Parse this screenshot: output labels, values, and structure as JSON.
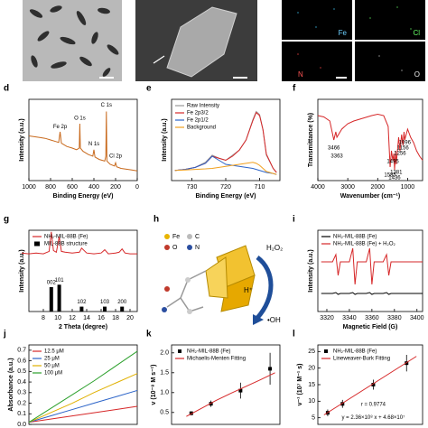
{
  "images": {
    "eds_labels": [
      "Fe",
      "Cl",
      "N",
      "O"
    ]
  },
  "diagram": {
    "panel": "h",
    "legend": [
      "Fe",
      "C",
      "O",
      "N"
    ],
    "labels": [
      "H₂O₂",
      "H⁺",
      "•OH"
    ]
  },
  "chart_data": [
    {
      "type": "line",
      "panel": "d",
      "xlabel": "Binding Energy (eV)",
      "ylabel": "Intensity (a.u.)",
      "xlim": [
        1000,
        0
      ],
      "ylim": [
        0,
        100
      ],
      "xticks": [
        1000,
        800,
        600,
        400,
        200,
        0
      ],
      "x": [
        1000,
        950,
        900,
        850,
        800,
        750,
        725,
        712,
        700,
        650,
        600,
        560,
        535,
        530,
        525,
        500,
        450,
        410,
        400,
        390,
        350,
        300,
        290,
        285,
        280,
        250,
        210,
        200,
        190,
        150,
        100,
        50,
        0
      ],
      "series": [
        {
          "color": "#c8691c",
          "values": [
            55,
            54,
            53,
            52,
            50,
            48,
            47,
            60,
            46,
            42,
            40,
            38,
            40,
            70,
            40,
            36,
            32,
            30,
            38,
            29,
            26,
            24,
            30,
            85,
            24,
            20,
            18,
            22,
            17,
            15,
            14,
            13,
            12
          ]
        }
      ],
      "annotations": [
        {
          "text": "Fe 2p",
          "x": 712,
          "y": 66
        },
        {
          "text": "O 1s",
          "x": 530,
          "y": 77
        },
        {
          "text": "N 1s",
          "x": 400,
          "y": 45
        },
        {
          "text": "C 1s",
          "x": 285,
          "y": 93
        },
        {
          "text": "Cl 2p",
          "x": 200,
          "y": 30
        }
      ]
    },
    {
      "type": "line",
      "panel": "e",
      "xlabel": "Binding Energy (eV)",
      "ylabel": "Intensity (a.u.)",
      "xlim": [
        736,
        704
      ],
      "ylim": [
        20,
        100
      ],
      "xticks": [
        730,
        720,
        710
      ],
      "legend": "upper-left",
      "x": [
        735,
        732,
        729,
        726,
        724,
        722,
        720,
        718,
        716,
        714,
        712,
        711,
        710,
        709,
        708,
        706,
        705
      ],
      "series": [
        {
          "name": "Raw Intensity",
          "color": "#9a9a9a",
          "values": [
            30,
            31,
            33,
            38,
            45,
            42,
            40,
            45,
            50,
            60,
            80,
            88,
            85,
            70,
            45,
            32,
            28
          ]
        },
        {
          "name": "Fe 2p3/2",
          "color": "#d62728",
          "values": [
            30,
            31,
            33,
            37,
            44,
            42,
            40,
            44,
            50,
            60,
            79,
            87,
            84,
            70,
            46,
            32,
            28
          ]
        },
        {
          "name": "Fe 2p1/2",
          "color": "#2b63c8",
          "values": [
            30,
            31,
            33,
            37,
            44,
            40,
            36,
            35,
            34,
            33,
            32,
            31,
            30,
            29,
            28,
            27,
            26
          ]
        },
        {
          "name": "Background",
          "color": "#f0a020",
          "values": [
            30,
            30.5,
            31,
            31.5,
            32,
            33,
            34,
            35,
            36,
            37,
            38,
            37,
            35,
            32,
            29,
            27,
            26
          ]
        }
      ]
    },
    {
      "type": "line",
      "panel": "f",
      "xlabel": "Wavenumber (cm⁻¹)",
      "ylabel": "Transmittance (%)",
      "xlim": [
        4000,
        500
      ],
      "ylim": [
        40,
        100
      ],
      "xticks": [
        4000,
        3000,
        2000,
        1000
      ],
      "x": [
        4000,
        3800,
        3600,
        3466,
        3400,
        3363,
        3200,
        3000,
        2800,
        2500,
        2200,
        2000,
        1800,
        1650,
        1585,
        1540,
        1495,
        1460,
        1436,
        1400,
        1381,
        1300,
        1256,
        1200,
        1156,
        1120,
        1096,
        1000,
        900,
        800,
        700,
        600,
        500
      ],
      "series": [
        {
          "color": "#d62728",
          "values": [
            88,
            87,
            84,
            70,
            76,
            72,
            78,
            82,
            84,
            86,
            88,
            89,
            88,
            80,
            50,
            62,
            55,
            60,
            48,
            62,
            52,
            72,
            62,
            74,
            66,
            76,
            70,
            78,
            72,
            68,
            62,
            58,
            55
          ]
        }
      ],
      "annotations": [
        {
          "x": 3466,
          "y": 64
        },
        {
          "x": 3363,
          "y": 58
        },
        {
          "x": 1585,
          "y": 44
        },
        {
          "x": 1495,
          "y": 54
        },
        {
          "x": 1436,
          "y": 42
        },
        {
          "x": 1381,
          "y": 46
        },
        {
          "x": 1256,
          "y": 60
        },
        {
          "x": 1156,
          "y": 64
        },
        {
          "x": 1096,
          "y": 68
        }
      ]
    },
    {
      "type": "line",
      "panel": "g",
      "xlabel": "2 Theta (degree)",
      "ylabel": "Intensity (a.u.)",
      "xlim": [
        6,
        21
      ],
      "ylim": [
        0,
        100
      ],
      "xticks": [
        8,
        10,
        12,
        14,
        16,
        18,
        20
      ],
      "legend": "upper-left",
      "x": [
        5,
        6,
        7,
        8,
        8.8,
        9.1,
        9.4,
        9.8,
        10.2,
        10.5,
        11,
        12,
        13,
        13.3,
        14,
        15,
        16,
        16.5,
        17,
        18,
        18.5,
        18.9,
        19.3,
        20,
        21
      ],
      "series": [
        {
          "name": "NH₂-MIL-88B (Fe)",
          "color": "#d62728",
          "values": [
            72,
            71,
            72,
            71,
            74,
            98,
            75,
            73,
            92,
            74,
            73,
            72,
            73,
            78,
            72,
            71,
            72,
            76,
            71,
            72,
            73,
            77,
            72,
            71,
            71
          ]
        },
        {
          "name": "MIL-88B structure",
          "color": "#000000",
          "kind": "bar",
          "x": [
            9.1,
            10.2,
            13.3,
            16.5,
            18.9
          ],
          "values": [
            30,
            33,
            6,
            6,
            6
          ],
          "labels": [
            "002",
            "101",
            "102",
            "103",
            "200"
          ]
        }
      ]
    },
    {
      "type": "line",
      "panel": "i",
      "xlabel": "Magnetic Field (G)",
      "ylabel": "Intensity (a.u.)",
      "xlim": [
        3312,
        3405
      ],
      "ylim": [
        0,
        90
      ],
      "xticks": [
        3320,
        3340,
        3360,
        3380,
        3400
      ],
      "legend": "upper-left",
      "x": [
        3315,
        3325,
        3328,
        3330,
        3332,
        3335,
        3340,
        3343,
        3345,
        3347,
        3350,
        3355,
        3358,
        3360,
        3362,
        3365,
        3370,
        3373,
        3375,
        3377,
        3380,
        3385,
        3390,
        3395,
        3400,
        3405
      ],
      "series": [
        {
          "name": "NH₂-MIL-88B (Fe)",
          "color": "#000000",
          "values": [
            20,
            20,
            21,
            19,
            20,
            20,
            20,
            21,
            19,
            20,
            20,
            20,
            21,
            19,
            20,
            20,
            20,
            21,
            19,
            20,
            20,
            20,
            20,
            20,
            20,
            20
          ]
        },
        {
          "name": "NH₂-MIL-88B (Fe) + H₂O₂",
          "color": "#d62728",
          "values": [
            55,
            55,
            63,
            40,
            55,
            55,
            55,
            70,
            30,
            55,
            55,
            55,
            70,
            30,
            55,
            55,
            55,
            63,
            40,
            55,
            55,
            55,
            55,
            55,
            55,
            55
          ]
        }
      ]
    },
    {
      "type": "line",
      "panel": "j",
      "ylabel": "Absorbance (a.u.)",
      "xlim": [
        0,
        10
      ],
      "ylim": [
        0,
        0.75
      ],
      "yticks": [
        {
          "value": 0,
          "label": "0.0"
        },
        0.1,
        0.2,
        0.3,
        0.4,
        0.5,
        0.6,
        0.7
      ],
      "legend": "upper-left",
      "x": [
        0,
        2,
        4,
        6,
        8,
        10
      ],
      "series": [
        {
          "name": "12.5 μM",
          "color": "#d62728",
          "values": [
            0.02,
            0.05,
            0.08,
            0.11,
            0.14,
            0.17
          ]
        },
        {
          "name": "25 μM",
          "color": "#2b63c8",
          "values": [
            0.02,
            0.08,
            0.14,
            0.2,
            0.26,
            0.32
          ]
        },
        {
          "name": "50 μM",
          "color": "#e0b000",
          "values": [
            0.02,
            0.11,
            0.2,
            0.3,
            0.39,
            0.48
          ]
        },
        {
          "name": "100 μM",
          "color": "#2ca02c",
          "values": [
            0.02,
            0.15,
            0.28,
            0.41,
            0.55,
            0.69
          ]
        }
      ]
    },
    {
      "type": "scatter",
      "panel": "k",
      "ylabel": "v (10⁻⁸ M s⁻¹)",
      "xlim": [
        0,
        1.1
      ],
      "ylim": [
        0.2,
        2.2
      ],
      "yticks": [
        0.5,
        {
          "value": 1,
          "label": "1.0"
        },
        1.5,
        {
          "value": 2,
          "label": "2.0"
        }
      ],
      "legend": "upper-left",
      "x": [
        0.2,
        0.4,
        0.7,
        1.0
      ],
      "series": [
        {
          "name": "NH₂-MIL-88B (Fe)",
          "color": "#000000",
          "values": [
            0.48,
            0.72,
            1.05,
            1.6
          ],
          "errors": [
            0.05,
            0.08,
            0.2,
            0.4
          ]
        },
        {
          "name": "Michaelis-Menten Fitting",
          "color": "#d62728",
          "x": [
            0.15,
            0.3,
            0.45,
            0.6,
            0.75,
            0.9,
            1.05
          ],
          "values": [
            0.4,
            0.6,
            0.8,
            0.98,
            1.15,
            1.32,
            1.5
          ]
        }
      ]
    },
    {
      "type": "scatter",
      "panel": "l",
      "ylabel": "v⁻¹ (10⁷ M⁻¹ s)",
      "xlim": [
        0,
        0.85
      ],
      "ylim": [
        3,
        27
      ],
      "yticks": [
        5,
        10,
        15,
        20,
        25
      ],
      "legend": "upper-left",
      "x": [
        0.08,
        0.2,
        0.45,
        0.72
      ],
      "series": [
        {
          "name": "NH₂-MIL-88B (Fe)",
          "color": "#000000",
          "values": [
            6.5,
            9.2,
            15,
            21.5
          ],
          "errors": [
            1,
            1.2,
            1.5,
            2.5
          ]
        },
        {
          "name": "Lineweaver-Burk Fitting",
          "color": "#d62728",
          "x": [
            0.05,
            0.8
          ],
          "values": [
            5.86,
            23.56
          ]
        }
      ],
      "annotations": [
        {
          "text": "r = 0.9774",
          "x": 0.45,
          "y": 9
        },
        {
          "text": "y = 2.36×10⁸ x + 4.68×10⁷",
          "x": 0.45,
          "y": 5
        }
      ]
    }
  ]
}
